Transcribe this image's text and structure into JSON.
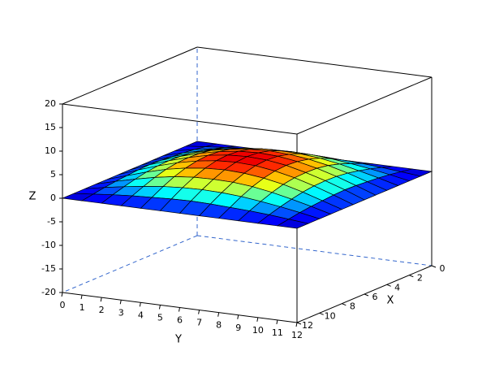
{
  "chart_data": {
    "type": "surface",
    "xlabel": "X",
    "ylabel": "Y",
    "zlabel": "Z",
    "x": [
      0,
      1,
      2,
      3,
      4,
      5,
      6,
      7,
      8,
      9,
      10,
      11,
      12
    ],
    "y": [
      0,
      1,
      2,
      3,
      4,
      5,
      6,
      7,
      8,
      9,
      10,
      11,
      12
    ],
    "z": [
      [
        0,
        0,
        0,
        0,
        0,
        0,
        0,
        0,
        0,
        0,
        0,
        0,
        0
      ],
      [
        0,
        0.4,
        0.8,
        1.1,
        1.3,
        1.5,
        1.6,
        1.5,
        1.3,
        1.1,
        0.8,
        0.4,
        0
      ],
      [
        0,
        0.8,
        1.5,
        2.1,
        2.6,
        2.9,
        3,
        2.9,
        2.6,
        2.1,
        1.5,
        0.8,
        0
      ],
      [
        0,
        1.1,
        2.1,
        3,
        3.7,
        4.1,
        4.2,
        4.1,
        3.7,
        3,
        2.1,
        1.1,
        0
      ],
      [
        0,
        1.3,
        2.6,
        3.7,
        4.5,
        5,
        5.2,
        5,
        4.5,
        3.7,
        2.6,
        1.3,
        0
      ],
      [
        0,
        1.5,
        2.9,
        4.1,
        5,
        5.6,
        5.8,
        5.6,
        5,
        4.1,
        2.9,
        1.5,
        0
      ],
      [
        0,
        1.6,
        3,
        4.2,
        5.2,
        5.8,
        6,
        5.8,
        5.2,
        4.2,
        3,
        1.6,
        0
      ],
      [
        0,
        1.5,
        2.9,
        4.1,
        5,
        5.6,
        5.8,
        5.6,
        5,
        4.1,
        2.9,
        1.5,
        0
      ],
      [
        0,
        1.3,
        2.6,
        3.7,
        4.5,
        5,
        5.2,
        5,
        4.5,
        3.7,
        2.6,
        1.3,
        0
      ],
      [
        0,
        1.1,
        2.1,
        3,
        3.7,
        4.1,
        4.2,
        4.1,
        3.7,
        3,
        2.1,
        1.1,
        0
      ],
      [
        0,
        0.8,
        1.5,
        2.1,
        2.6,
        2.9,
        3,
        2.9,
        2.6,
        2.1,
        1.5,
        0.8,
        0
      ],
      [
        0,
        0.4,
        0.8,
        1.1,
        1.3,
        1.5,
        1.6,
        1.5,
        1.3,
        1.1,
        0.8,
        0.4,
        0
      ],
      [
        0,
        0,
        0,
        0,
        0,
        0,
        0,
        0,
        0,
        0,
        0,
        0,
        0
      ]
    ],
    "xlim": [
      0,
      12
    ],
    "ylim": [
      0,
      12
    ],
    "zlim": [
      -20,
      20
    ],
    "xticks": [
      0,
      2,
      4,
      6,
      8,
      10,
      12
    ],
    "yticks": [
      0,
      1,
      2,
      3,
      4,
      5,
      6,
      7,
      8,
      9,
      10,
      11,
      12
    ],
    "zticks": [
      -20,
      -15,
      -10,
      -5,
      0,
      5,
      10,
      15,
      20
    ],
    "colormap": "jet",
    "edge_color": "#000000",
    "box_color": "#000000",
    "hidden_edge_color": "#3366cc"
  }
}
